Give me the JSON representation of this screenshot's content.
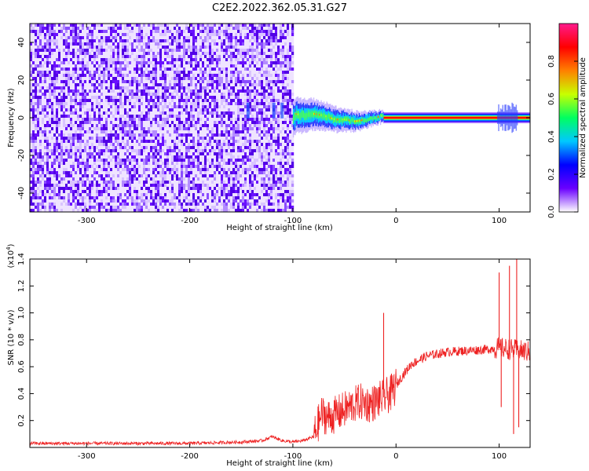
{
  "title": "C2E2.2022.362.05.31.G27",
  "chart_data": [
    {
      "type": "heatmap",
      "xlabel": "Height of straight line (km)",
      "ylabel": "Frequency (Hz)",
      "xlim": [
        -355,
        130
      ],
      "ylim": [
        -50,
        50
      ],
      "xticks": [
        -300,
        -200,
        -100,
        0,
        100
      ],
      "yticks": [
        -40,
        -20,
        0,
        20,
        40
      ],
      "noise_region_x": [
        -355,
        -100
      ],
      "signal_band": {
        "x_start": -100,
        "x_end": 130,
        "center_freq": 0,
        "points": [
          {
            "x": -98,
            "f": 2
          },
          {
            "x": -90,
            "f": 1
          },
          {
            "x": -80,
            "f": 2
          },
          {
            "x": -70,
            "f": 1
          },
          {
            "x": -60,
            "f": -1
          },
          {
            "x": -50,
            "f": -1
          },
          {
            "x": -40,
            "f": -2
          },
          {
            "x": -30,
            "f": -1
          },
          {
            "x": -20,
            "f": 0
          },
          {
            "x": -12,
            "f": 1
          },
          {
            "x": 0,
            "f": 0
          },
          {
            "x": 50,
            "f": 0
          },
          {
            "x": 100,
            "f": 0
          },
          {
            "x": 110,
            "f": -1
          },
          {
            "x": 130,
            "f": 0
          }
        ]
      },
      "colorbar": {
        "label": "Normalized spectral amplitude",
        "range": [
          0,
          1
        ],
        "ticks": [
          0.0,
          0.2,
          0.4,
          0.6,
          0.8
        ],
        "colors": [
          "#ffffff",
          "#6a00ff",
          "#0000ff",
          "#00c8ff",
          "#00ff60",
          "#c8ff00",
          "#ff8000",
          "#ff0000",
          "#ff1a8c"
        ]
      },
      "grid": false
    },
    {
      "type": "line",
      "xlabel": "Height of straight line (km)",
      "ylabel": "SNR (10 * v/v)",
      "y_multiplier": "(x10",
      "y_multiplier_exp": "4",
      "y_multiplier_close": ")",
      "xlim": [
        -355,
        130
      ],
      "ylim": [
        0,
        1.4
      ],
      "xticks": [
        -300,
        -200,
        -100,
        0,
        100
      ],
      "yticks": [
        0.2,
        0.4,
        0.6,
        0.8,
        1.0,
        1.2,
        1.4
      ],
      "series": [
        {
          "color": "#ee2222",
          "points": [
            {
              "x": -355,
              "y": 0.03
            },
            {
              "x": -300,
              "y": 0.03
            },
            {
              "x": -250,
              "y": 0.03
            },
            {
              "x": -200,
              "y": 0.03
            },
            {
              "x": -150,
              "y": 0.04
            },
            {
              "x": -130,
              "y": 0.05
            },
            {
              "x": -120,
              "y": 0.08
            },
            {
              "x": -110,
              "y": 0.05
            },
            {
              "x": -100,
              "y": 0.04
            },
            {
              "x": -90,
              "y": 0.05
            },
            {
              "x": -80,
              "y": 0.08
            },
            {
              "x": -72,
              "y": 0.25
            },
            {
              "x": -65,
              "y": 0.22
            },
            {
              "x": -55,
              "y": 0.26
            },
            {
              "x": -45,
              "y": 0.3
            },
            {
              "x": -35,
              "y": 0.34
            },
            {
              "x": -25,
              "y": 0.32
            },
            {
              "x": -15,
              "y": 0.36
            },
            {
              "x": -5,
              "y": 0.4
            },
            {
              "x": 5,
              "y": 0.52
            },
            {
              "x": 15,
              "y": 0.62
            },
            {
              "x": 30,
              "y": 0.68
            },
            {
              "x": 50,
              "y": 0.71
            },
            {
              "x": 70,
              "y": 0.72
            },
            {
              "x": 90,
              "y": 0.73
            },
            {
              "x": 100,
              "y": 0.74
            },
            {
              "x": 110,
              "y": 0.73
            },
            {
              "x": 120,
              "y": 0.72
            },
            {
              "x": 130,
              "y": 0.71
            }
          ],
          "spikes": [
            {
              "x": -12,
              "y": 1.0
            },
            {
              "x": 100,
              "y": 1.3
            },
            {
              "x": 102,
              "y": 0.3
            },
            {
              "x": 110,
              "y": 1.35
            },
            {
              "x": 114,
              "y": 0.1
            },
            {
              "x": 117,
              "y": 1.4
            },
            {
              "x": 119,
              "y": 0.15
            }
          ]
        }
      ],
      "grid": false
    }
  ]
}
